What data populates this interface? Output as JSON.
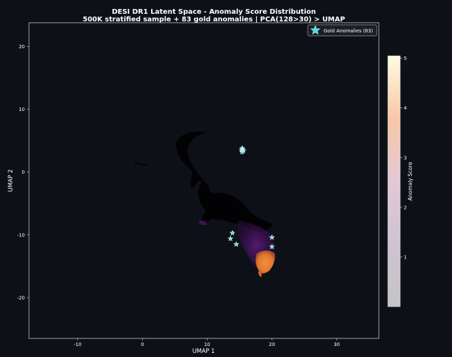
{
  "chart_data": {
    "type": "scatter",
    "title": "DESI DR1 Latent Space - Anomaly Score Distribution",
    "subtitle": "500K stratified sample + 83 gold anomalies | PCA(128>30) > UMAP",
    "xlabel": "UMAP 1",
    "ylabel": "UMAP 2",
    "xlim": [
      -17.5,
      36.5
    ],
    "ylim": [
      -26.5,
      23.8
    ],
    "xticks": [
      -10,
      0,
      10,
      20,
      30
    ],
    "yticks": [
      -20,
      -10,
      0,
      10,
      20
    ],
    "grid": false,
    "legend_position": "top-right",
    "legend": [
      {
        "label": "Gold Anomalies (83)",
        "marker": "star",
        "color": "#40e0f0"
      }
    ],
    "colorbar": {
      "label": "Anomaly Score",
      "min": 0,
      "max": 5.05,
      "ticks": [
        1,
        2,
        3,
        4,
        5
      ],
      "colormap": "inferno-like (gray to cream)"
    },
    "series": [
      {
        "values": [
          {
            "x": 13.9,
            "y": -9.7
          },
          {
            "x": 13.6,
            "y": -10.6
          },
          {
            "x": 14.5,
            "y": -11.5
          },
          {
            "x": 20.0,
            "y": -10.4
          },
          {
            "x": 20.0,
            "y": -11.9
          },
          {
            "x": 15.4,
            "y": 3.8
          },
          {
            "x": 15.5,
            "y": 3.6
          },
          {
            "x": 15.3,
            "y": 3.5
          },
          {
            "x": 15.6,
            "y": 3.4
          },
          {
            "x": 15.4,
            "y": 3.2
          }
        ]
      }
    ],
    "density_regions": [
      {
        "name": "low-score-body",
        "score": 0.2,
        "color": "#000000"
      },
      {
        "name": "mid-score-tail",
        "score": 2.0,
        "color": "#4a1466"
      },
      {
        "name": "high-score-core",
        "score": 4.0,
        "color": "#ef8a3c"
      }
    ]
  }
}
